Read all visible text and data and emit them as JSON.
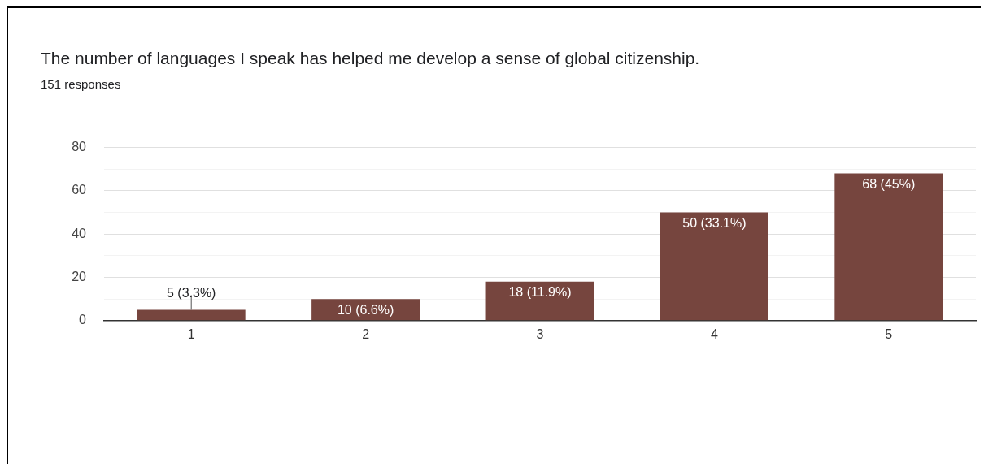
{
  "chart_data": {
    "type": "bar",
    "title": "The number of languages I speak has helped me develop a sense of global citizenship.",
    "subtitle": "151 responses",
    "categories": [
      "1",
      "2",
      "3",
      "4",
      "5"
    ],
    "values": [
      5,
      10,
      18,
      50,
      68
    ],
    "value_labels": [
      "5 (3.3%)",
      "10 (6.6%)",
      "18 (11.9%)",
      "50 (33.1%)",
      "68 (45%)"
    ],
    "color": "#76453e",
    "ylim": [
      0,
      80
    ],
    "yticks": [
      0,
      {
        "value": 10,
        "label": null
      },
      20,
      {
        "value": 30,
        "label": null
      },
      40,
      {
        "value": 50,
        "label": null
      },
      60,
      {
        "value": 70,
        "label": null
      },
      80
    ],
    "grid": "y",
    "legend": false
  }
}
